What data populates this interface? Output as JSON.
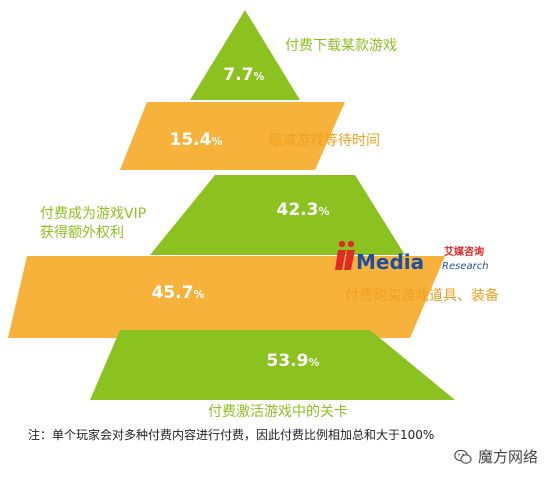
{
  "chart_data": {
    "type": "pyramid",
    "tiers": [
      {
        "value": 7.7,
        "value_label": "7.7",
        "unit": "%",
        "label_lines": [
          "付费下载某款游戏"
        ],
        "color": "#8cc21f",
        "label_color": "#8cc21f",
        "label_side": "right"
      },
      {
        "value": 15.4,
        "value_label": "15.4",
        "unit": "%",
        "label_lines": [
          "缩减游戏等待时间"
        ],
        "color": "#f6b23b",
        "label_color": "#f0a020",
        "label_side": "right"
      },
      {
        "value": 42.3,
        "value_label": "42.3",
        "unit": "%",
        "label_lines": [
          "付费成为游戏VIP",
          "获得额外权利"
        ],
        "color": "#8cc21f",
        "label_color": "#8cc21f",
        "label_side": "left"
      },
      {
        "value": 45.7,
        "value_label": "45.7",
        "unit": "%",
        "label_lines": [
          "付费购买游戏道具、装备"
        ],
        "color": "#f6b23b",
        "label_color": "#f0a020",
        "label_side": "right"
      },
      {
        "value": 53.9,
        "value_label": "53.9",
        "unit": "%",
        "label_lines": [
          "付费激活游戏中的关卡"
        ],
        "color": "#8cc21f",
        "label_color": "#8cc21f",
        "label_side": "below"
      }
    ]
  },
  "logo": {
    "brand": "iiMedia",
    "cn": "艾媒咨询",
    "en": "Research"
  },
  "note": "注：单个玩家会对多种付费内容进行付费，因此付费比例相加总和大于100%",
  "watermark": "魔方网络"
}
